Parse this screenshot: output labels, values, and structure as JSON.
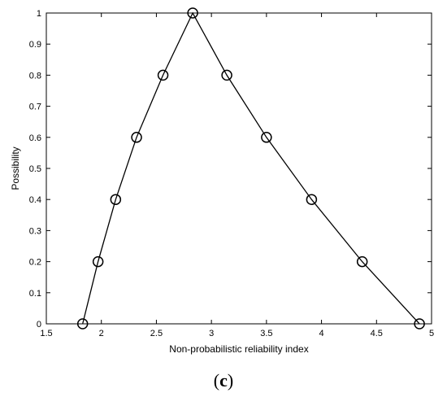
{
  "chart_data": {
    "type": "line",
    "title": "",
    "xlabel": "Non-probabilistic reliability index",
    "ylabel": "Possibility",
    "xlim": [
      1.5,
      5
    ],
    "ylim": [
      0,
      1
    ],
    "xticks": [
      "1.5",
      "2",
      "2.5",
      "3",
      "3.5",
      "4",
      "4.5",
      "5"
    ],
    "yticks": [
      "0",
      "0.1",
      "0.2",
      "0.3",
      "0.4",
      "0.5",
      "0.6",
      "0.7",
      "0.8",
      "0.9",
      "1"
    ],
    "grid": false,
    "series": [
      {
        "marker": "circle",
        "color": "#000000",
        "x": [
          1.83,
          1.97,
          2.13,
          2.32,
          2.56,
          2.83,
          3.14,
          3.5,
          3.91,
          4.37,
          4.89
        ],
        "y": [
          0,
          0.2,
          0.4,
          0.6,
          0.8,
          1.0,
          0.8,
          0.6,
          0.4,
          0.2,
          0
        ]
      }
    ]
  },
  "caption": {
    "open": "(",
    "letter": "c",
    "close": ")"
  }
}
